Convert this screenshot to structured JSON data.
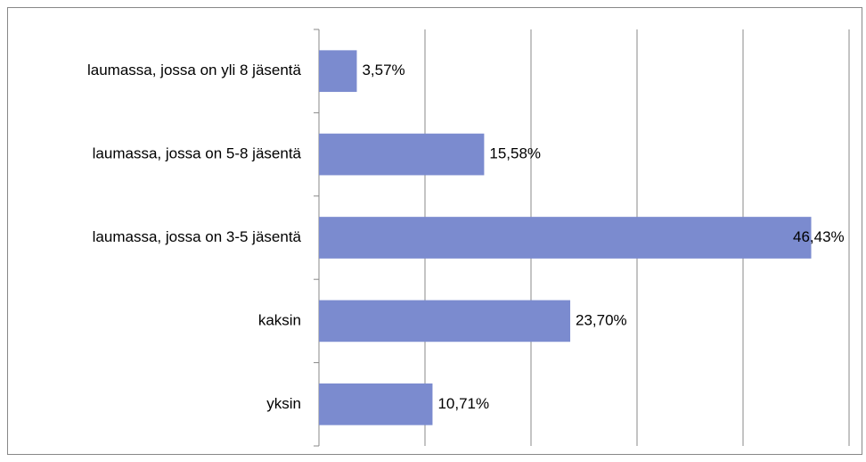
{
  "chart_data": {
    "type": "bar",
    "orientation": "horizontal",
    "categories": [
      "laumassa, jossa on yli 8 jäsentä",
      "laumassa, jossa on 5-8 jäsentä",
      "laumassa, jossa on 3-5 jäsentä",
      "kaksin",
      "yksin"
    ],
    "values": [
      3.57,
      15.58,
      46.43,
      23.7,
      10.71
    ],
    "value_labels": [
      "3,57%",
      "15,58%",
      "46,43%",
      "23,70%",
      "10,71%"
    ],
    "color": "#7b8bcf",
    "xlim": [
      0,
      50
    ],
    "xticks": [
      0,
      10,
      20,
      30,
      40,
      50
    ],
    "grid": true
  }
}
